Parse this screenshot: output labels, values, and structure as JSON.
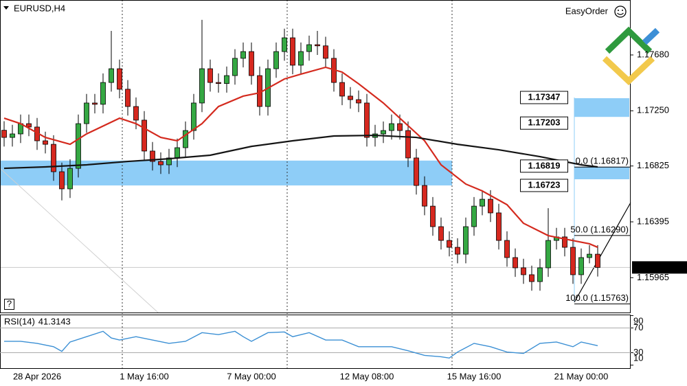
{
  "header": {
    "symbol": "EURUSD,H4",
    "tool": "EasyOrder",
    "help": "?"
  },
  "chart_data": {
    "type": "candlestick",
    "categories": [
      null,
      null,
      null,
      null,
      "28 Apr 2026",
      null,
      null,
      null,
      null,
      null,
      null,
      null,
      null,
      null,
      null,
      null,
      null,
      "1 May 16:00",
      null,
      null,
      null,
      null,
      null,
      null,
      null,
      null,
      null,
      null,
      null,
      null,
      "7 May 00:00",
      null,
      null,
      null,
      null,
      null,
      null,
      null,
      null,
      null,
      null,
      null,
      null,
      null,
      "12 May 08:00",
      null,
      null,
      null,
      null,
      null,
      null,
      null,
      null,
      null,
      null,
      null,
      null,
      "15 May 16:00",
      null,
      null,
      null,
      null,
      null,
      null,
      null,
      null,
      null,
      null,
      null,
      null,
      "21 May 00:00",
      null,
      null
    ],
    "open": [
      1.171,
      1.17045,
      1.17072,
      1.17151,
      1.17125,
      1.17019,
      1.16992,
      1.16781,
      1.16649,
      1.16807,
      1.17151,
      1.1731,
      1.173,
      1.17468,
      1.17574,
      1.17416,
      1.17283,
      1.17178,
      1.1694,
      1.1686,
      1.16834,
      1.16887,
      1.16966,
      1.17098,
      1.1731,
      1.17574,
      1.17468,
      1.1746,
      1.17521,
      1.17654,
      1.17706,
      1.17521,
      1.17283,
      1.17574,
      1.17706,
      1.17812,
      1.17601,
      1.17706,
      1.17759,
      1.1775,
      1.17654,
      1.17468,
      1.17363,
      1.17336,
      1.1731,
      1.17045,
      1.17072,
      1.17098,
      1.17151,
      1.17098,
      1.16887,
      1.16675,
      1.16516,
      1.16358,
      1.16252,
      1.16199,
      1.16146,
      1.16358,
      1.16516,
      1.16569,
      1.16464,
      1.16252,
      1.1612,
      1.16041,
      1.15988,
      1.15935,
      1.16041,
      1.16252,
      1.16279,
      1.16199,
      1.15988,
      1.1612,
      1.16146
    ],
    "high": [
      1.1717,
      1.17142,
      1.17221,
      1.17221,
      1.17195,
      1.17089,
      1.17062,
      1.16851,
      1.16877,
      1.17221,
      1.1738,
      1.1738,
      1.17538,
      1.17865,
      1.17644,
      1.17486,
      1.17353,
      1.17248,
      1.1701,
      1.1693,
      1.16957,
      1.17036,
      1.17168,
      1.1738,
      1.1795,
      1.17644,
      1.17538,
      1.17591,
      1.17724,
      1.17776,
      1.17776,
      1.17591,
      1.17644,
      1.17776,
      1.17882,
      1.17882,
      1.17776,
      1.17829,
      1.17865,
      1.1782,
      1.17724,
      1.17538,
      1.17433,
      1.17406,
      1.1738,
      1.17142,
      1.17168,
      1.17221,
      1.17221,
      1.17168,
      1.16957,
      1.16745,
      1.16586,
      1.16428,
      1.16322,
      1.16269,
      1.16428,
      1.16586,
      1.16639,
      1.16639,
      1.16534,
      1.16322,
      1.1619,
      1.16111,
      1.16058,
      1.16111,
      1.165,
      1.16349,
      1.16349,
      1.16269,
      1.1619,
      1.16216,
      1.16216
    ],
    "low": [
      1.16975,
      1.16975,
      1.17002,
      1.17055,
      1.16949,
      1.16922,
      1.16711,
      1.1656,
      1.16579,
      1.16737,
      1.17081,
      1.1723,
      1.1723,
      1.17398,
      1.17346,
      1.17213,
      1.17108,
      1.1687,
      1.1679,
      1.16764,
      1.16764,
      1.16817,
      1.16896,
      1.17028,
      1.1724,
      1.17398,
      1.1739,
      1.1739,
      1.17451,
      1.17584,
      1.17451,
      1.17213,
      1.17213,
      1.17504,
      1.17636,
      1.17531,
      1.17531,
      1.17636,
      1.1768,
      1.17584,
      1.17398,
      1.17293,
      1.17266,
      1.1724,
      1.16975,
      1.16975,
      1.17002,
      1.17028,
      1.17028,
      1.16817,
      1.16605,
      1.16446,
      1.16288,
      1.16182,
      1.16129,
      1.16076,
      1.16076,
      1.16288,
      1.16446,
      1.16394,
      1.16182,
      1.1605,
      1.15971,
      1.15918,
      1.15865,
      1.15865,
      1.15971,
      1.16182,
      1.16129,
      1.15918,
      1.15918,
      1.16076,
      1.15974
    ],
    "close": [
      1.17045,
      1.17072,
      1.17151,
      1.17125,
      1.17019,
      1.16992,
      1.16781,
      1.16649,
      1.16807,
      1.17151,
      1.1731,
      1.173,
      1.17468,
      1.17574,
      1.17416,
      1.17283,
      1.17178,
      1.1694,
      1.1686,
      1.16834,
      1.16887,
      1.16966,
      1.17098,
      1.1731,
      1.17574,
      1.17468,
      1.1746,
      1.17521,
      1.17654,
      1.17706,
      1.17521,
      1.17283,
      1.17574,
      1.17706,
      1.17812,
      1.17601,
      1.17706,
      1.17759,
      1.1775,
      1.17654,
      1.17468,
      1.17363,
      1.17336,
      1.1731,
      1.17045,
      1.17072,
      1.17098,
      1.17151,
      1.17098,
      1.16887,
      1.16675,
      1.16516,
      1.16358,
      1.16252,
      1.16199,
      1.16146,
      1.16358,
      1.16516,
      1.16569,
      1.16464,
      1.16252,
      1.1612,
      1.16041,
      1.15988,
      1.15935,
      1.16041,
      1.16252,
      1.16279,
      1.16199,
      1.15988,
      1.1612,
      1.16146,
      1.16044
    ],
    "up_color": "#35a843",
    "down_color": "#d6281f",
    "ylim": [
      1.15697,
      1.18103
    ],
    "yticks": [
      {
        "value": 1.1768,
        "label": "1.17680"
      },
      {
        "value": 1.1725,
        "label": "1.17250"
      },
      1.16825,
      1.16395,
      1.15965
    ],
    "last_price": 1.16044,
    "moving_averages": [
      {
        "color": "#d42a1e",
        "x": [
          0,
          2,
          5,
          8,
          10,
          14,
          16,
          19,
          21,
          24,
          26,
          29,
          31,
          34,
          36,
          39,
          41,
          43,
          46,
          48,
          51,
          53,
          56,
          58,
          61,
          63,
          66,
          68,
          71,
          72
        ],
        "values": [
          1.17193,
          1.17151,
          1.17045,
          1.16992,
          1.17072,
          1.17193,
          1.17151,
          1.17045,
          1.17019,
          1.17151,
          1.17283,
          1.17363,
          1.17389,
          1.17495,
          1.17532,
          1.17585,
          1.17548,
          1.17458,
          1.1731,
          1.17193,
          1.17019,
          1.16834,
          1.16686,
          1.16633,
          1.16527,
          1.16384,
          1.16289,
          1.16263,
          1.16226,
          1.16199
        ]
      },
      {
        "color": "#141414",
        "x": [
          0,
          5,
          10,
          15,
          20,
          25,
          30,
          35,
          40,
          45,
          50,
          55,
          60,
          65,
          70,
          72
        ],
        "values": [
          1.16807,
          1.16818,
          1.16834,
          1.1686,
          1.16881,
          1.16908,
          1.16976,
          1.17019,
          1.17056,
          1.17061,
          1.17045,
          1.16992,
          1.1695,
          1.16897,
          1.16834,
          1.16818
        ]
      }
    ],
    "zones": [
      {
        "top": 1.17347,
        "bottom": 1.17203
      },
      {
        "top": 1.16819,
        "bottom": 1.16723
      }
    ],
    "zone_color": "#8ecdf7",
    "fibonacci": [
      {
        "value": 1.16817,
        "label": "0.0 (1.16817)"
      },
      {
        "value": 1.1629,
        "label": "50.0 (1.16290)"
      },
      {
        "value": 1.15763,
        "label": "100.0 (1.15763)"
      }
    ],
    "rsi": {
      "type": "line",
      "title": "RSI(14)",
      "color": "#3a8fd4",
      "x": [
        0,
        2,
        4,
        6,
        7,
        8,
        10,
        12,
        13,
        14,
        16,
        18,
        20,
        22,
        24,
        26,
        28,
        29,
        30,
        32,
        34,
        35,
        37,
        39,
        41,
        43,
        45,
        47,
        49,
        51,
        53,
        54,
        55,
        57,
        59,
        61,
        63,
        65,
        67,
        69,
        70,
        72
      ],
      "values": [
        48.4,
        48.4,
        45.1,
        39.7,
        32.2,
        47.3,
        55.9,
        64.6,
        53.8,
        50.5,
        55.9,
        50.5,
        45.1,
        48.4,
        62.4,
        59.2,
        64.6,
        55.9,
        48.4,
        62.4,
        63.5,
        55.9,
        62.4,
        50.5,
        50.5,
        39.7,
        39.7,
        39.7,
        33.2,
        25.7,
        23.5,
        21.4,
        31.1,
        45.1,
        39.7,
        31.1,
        28.9,
        45.1,
        47.3,
        39.7,
        47.3,
        41.3143
      ],
      "ylim": [
        5.1,
        90.5
      ],
      "yticks": [
        90,
        70,
        30,
        10
      ],
      "levels": [
        70,
        30
      ]
    }
  }
}
